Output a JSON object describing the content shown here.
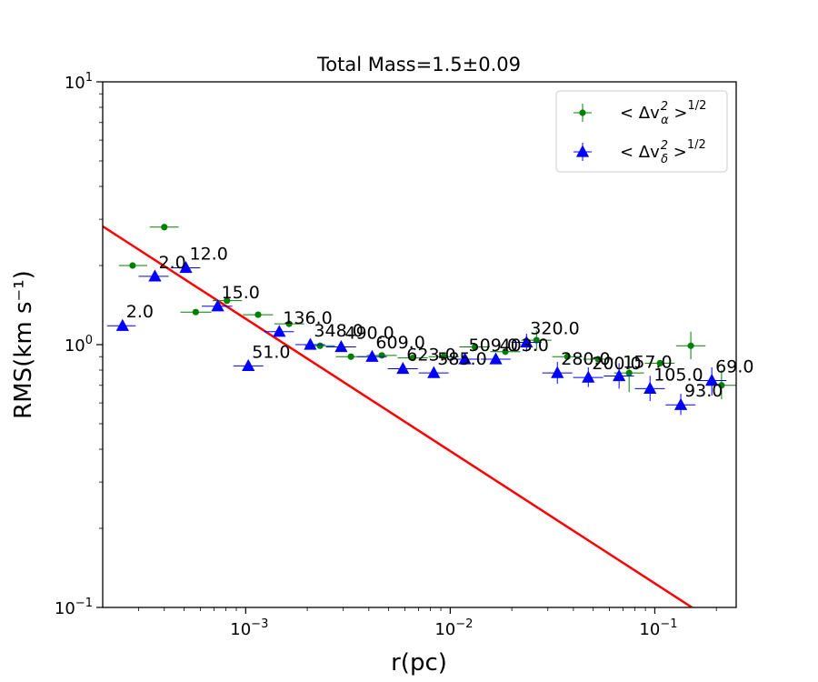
{
  "chart_data": {
    "type": "scatter",
    "title": "Total Mass=1.5±0.09",
    "xlabel": "r(pc)",
    "ylabel": "RMS(km s⁻¹)",
    "xscale": "log",
    "yscale": "log",
    "xlim": [
      0.0002,
      0.25
    ],
    "ylim": [
      0.1,
      10
    ],
    "grid": false,
    "legend_position": "top-right",
    "x_ticks": [
      {
        "value": 0.001,
        "base": "10",
        "exp": "−3"
      },
      {
        "value": 0.01,
        "base": "10",
        "exp": "−2"
      },
      {
        "value": 0.1,
        "base": "10",
        "exp": "−1"
      }
    ],
    "y_ticks": [
      {
        "value": 0.1,
        "base": "10",
        "exp": "−1"
      },
      {
        "value": 1,
        "base": "10",
        "exp": "0"
      },
      {
        "value": 10,
        "base": "10",
        "exp": "1"
      }
    ],
    "series": [
      {
        "name": "<Δv_α²>^1/2",
        "legend_main": "< Δv",
        "legend_sub": "α",
        "legend_sup": "2",
        "legend_tail": " >",
        "legend_exp": "1/2",
        "marker": "circle",
        "color": "#008000",
        "points": [
          {
            "x": 0.00028,
            "y": 2.0,
            "xerr": [
              0.00024,
              0.00033
            ]
          },
          {
            "x": 0.0004,
            "y": 2.8,
            "xerr": [
              0.00034,
              0.00047
            ]
          },
          {
            "x": 0.00057,
            "y": 1.33,
            "xerr": [
              0.00048,
              0.00068
            ]
          },
          {
            "x": 0.00081,
            "y": 1.47,
            "xerr": [
              0.00069,
              0.00096
            ]
          },
          {
            "x": 0.00115,
            "y": 1.3,
            "xerr": [
              0.00097,
              0.00136
            ]
          },
          {
            "x": 0.00163,
            "y": 1.2,
            "xerr": [
              0.00138,
              0.00193
            ]
          },
          {
            "x": 0.00231,
            "y": 0.99,
            "xerr": [
              0.00195,
              0.00273
            ]
          },
          {
            "x": 0.00327,
            "y": 0.9,
            "xerr": [
              0.00276,
              0.00387
            ]
          },
          {
            "x": 0.00463,
            "y": 0.91,
            "xerr": [
              0.0039,
              0.00548
            ]
          },
          {
            "x": 0.00656,
            "y": 0.89,
            "xerr": [
              0.00553,
              0.00776
            ]
          },
          {
            "x": 0.00929,
            "y": 0.9,
            "xerr": [
              0.00784,
              0.011
            ]
          },
          {
            "x": 0.0132,
            "y": 0.98,
            "xerr": [
              0.0111,
              0.0156
            ]
          },
          {
            "x": 0.0186,
            "y": 0.94,
            "xerr": [
              0.0157,
              0.022
            ]
          },
          {
            "x": 0.0264,
            "y": 1.04,
            "xerr": [
              0.0223,
              0.0312
            ],
            "yerr": [
              0.95,
              1.13
            ]
          },
          {
            "x": 0.0374,
            "y": 0.9,
            "xerr": [
              0.0315,
              0.0442
            ]
          },
          {
            "x": 0.0529,
            "y": 0.88,
            "xerr": [
              0.0446,
              0.0626
            ]
          },
          {
            "x": 0.0749,
            "y": 0.78,
            "xerr": [
              0.0632,
              0.0886
            ],
            "yerr": [
              0.66,
              0.9
            ]
          },
          {
            "x": 0.106,
            "y": 0.85,
            "xerr": [
              0.0894,
              0.125
            ]
          },
          {
            "x": 0.15,
            "y": 0.99,
            "xerr": [
              0.127,
              0.177
            ],
            "yerr": [
              0.88,
              1.12
            ]
          },
          {
            "x": 0.212,
            "y": 0.7,
            "xerr": [
              0.179,
              0.25
            ],
            "yerr": [
              0.62,
              0.8
            ]
          }
        ]
      },
      {
        "name": "<Δv_δ²>^1/2",
        "legend_main": "< Δv",
        "legend_sub": "δ",
        "legend_sup": "2",
        "legend_tail": " >",
        "legend_exp": "1/2",
        "marker": "triangle",
        "color": "#0000ff",
        "points": [
          {
            "x": 0.00025,
            "y": 1.18,
            "xerr": [
              0.00021,
              0.00029
            ]
          },
          {
            "x": 0.00036,
            "y": 1.82,
            "xerr": [
              0.0003,
              0.00042
            ]
          },
          {
            "x": 0.00051,
            "y": 1.96,
            "xerr": [
              0.00043,
              0.0006
            ]
          },
          {
            "x": 0.00073,
            "y": 1.4,
            "xerr": [
              0.00061,
              0.00086
            ]
          },
          {
            "x": 0.00103,
            "y": 0.83,
            "xerr": [
              0.00087,
              0.00122
            ]
          },
          {
            "x": 0.00146,
            "y": 1.12,
            "xerr": [
              0.00123,
              0.00172
            ]
          },
          {
            "x": 0.00207,
            "y": 1.0,
            "xerr": [
              0.00175,
              0.00244
            ]
          },
          {
            "x": 0.00293,
            "y": 0.98,
            "xerr": [
              0.00247,
              0.00346
            ]
          },
          {
            "x": 0.00415,
            "y": 0.9,
            "xerr": [
              0.0035,
              0.0049
            ]
          },
          {
            "x": 0.00587,
            "y": 0.81,
            "xerr": [
              0.00495,
              0.00694
            ]
          },
          {
            "x": 0.00831,
            "y": 0.78,
            "xerr": [
              0.00701,
              0.00982
            ]
          },
          {
            "x": 0.0118,
            "y": 0.88,
            "xerr": [
              0.00993,
              0.0139
            ]
          },
          {
            "x": 0.0167,
            "y": 0.88,
            "xerr": [
              0.0141,
              0.0197
            ]
          },
          {
            "x": 0.0236,
            "y": 1.02,
            "xerr": [
              0.0199,
              0.0279
            ],
            "yerr": [
              0.94,
              1.1
            ]
          },
          {
            "x": 0.0334,
            "y": 0.78,
            "xerr": [
              0.0282,
              0.0395
            ],
            "yerr": [
              0.71,
              0.86
            ]
          },
          {
            "x": 0.0473,
            "y": 0.75,
            "xerr": [
              0.0399,
              0.0559
            ],
            "yerr": [
              0.69,
              0.82
            ]
          },
          {
            "x": 0.0669,
            "y": 0.76,
            "xerr": [
              0.0564,
              0.0791
            ],
            "yerr": [
              0.68,
              0.85
            ]
          },
          {
            "x": 0.0948,
            "y": 0.68,
            "xerr": [
              0.08,
              0.112
            ],
            "yerr": [
              0.61,
              0.76
            ]
          },
          {
            "x": 0.134,
            "y": 0.59,
            "xerr": [
              0.113,
              0.158
            ],
            "yerr": [
              0.54,
              0.65
            ]
          },
          {
            "x": 0.19,
            "y": 0.73,
            "xerr": [
              0.16,
              0.224
            ],
            "yerr": [
              0.64,
              0.82
            ]
          }
        ]
      }
    ],
    "fit_line": {
      "color": "#ff0000",
      "points": [
        {
          "x": 0.0002,
          "y": 2.82
        },
        {
          "x": 0.152,
          "y": 0.1
        }
      ]
    },
    "annotations": [
      {
        "text": "2.0",
        "x": 0.00025,
        "y": 1.18
      },
      {
        "text": "2.0",
        "x": 0.00036,
        "y": 1.82
      },
      {
        "text": "12.0",
        "x": 0.00051,
        "y": 1.96
      },
      {
        "text": "15.0",
        "x": 0.00073,
        "y": 1.4
      },
      {
        "text": "51.0",
        "x": 0.00103,
        "y": 0.83
      },
      {
        "text": "136.0",
        "x": 0.00146,
        "y": 1.12
      },
      {
        "text": "348.0",
        "x": 0.00207,
        "y": 1.0
      },
      {
        "text": "490.0",
        "x": 0.00293,
        "y": 0.98
      },
      {
        "text": "609.0",
        "x": 0.00415,
        "y": 0.9
      },
      {
        "text": "623.0",
        "x": 0.00587,
        "y": 0.81
      },
      {
        "text": "585.0",
        "x": 0.00831,
        "y": 0.78
      },
      {
        "text": "509.0",
        "x": 0.0118,
        "y": 0.88
      },
      {
        "text": "403.0",
        "x": 0.0167,
        "y": 0.88
      },
      {
        "text": "320.0",
        "x": 0.0236,
        "y": 1.02
      },
      {
        "text": "280.0",
        "x": 0.0334,
        "y": 0.78
      },
      {
        "text": "200.0",
        "x": 0.0473,
        "y": 0.75
      },
      {
        "text": "157.0",
        "x": 0.0669,
        "y": 0.76
      },
      {
        "text": "105.0",
        "x": 0.0948,
        "y": 0.68
      },
      {
        "text": "93.0",
        "x": 0.134,
        "y": 0.59
      },
      {
        "text": "69.0",
        "x": 0.19,
        "y": 0.73
      }
    ]
  }
}
